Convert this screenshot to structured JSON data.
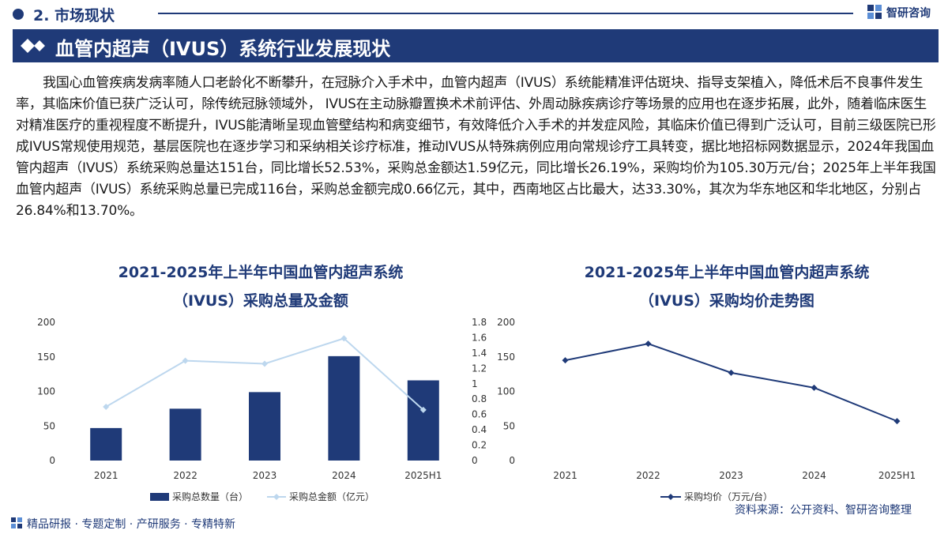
{
  "header": {
    "section": "2. 市场现状",
    "brand": "智研咨询",
    "title": "血管内超声（IVUS）系统行业发展现状"
  },
  "body": {
    "paragraph": "我国心血管疾病发病率随人口老龄化不断攀升，在冠脉介入手术中，血管内超声（IVUS）系统能精准评估斑块、指导支架植入，降低术后不良事件发生率，其临床价值已获广泛认可，除传统冠脉领域外， IVUS在主动脉瓣置换术术前评估、外周动脉疾病诊疗等场景的应用也在逐步拓展，此外，随着临床医生对精准医疗的重视程度不断提升，IVUS能清晰呈现血管壁结构和病变细节，有效降低介入手术的并发症风险，其临床价值已得到广泛认可，目前三级医院已形成IVUS常规使用规范，基层医院也在逐步学习和采纳相关诊疗标准，推动IVUS从特殊病例应用向常规诊疗工具转变，据比地招标网数据显示，2024年我国血管内超声（IVUS）系统采购总量达151台，同比增长52.53%，采购总金额达1.59亿元，同比增长26.19%，采购均价为105.30万元/台；2025年上半年我国血管内超声（IVUS）系统采购总量已完成116台，采购总金额完成0.66亿元，其中，西南地区占比最大，达33.30%，其次为华东地区和华北地区，分别占26.84%和13.70%。"
  },
  "chart_data": [
    {
      "type": "bar+line",
      "title_line1": "2021-2025年上半年中国血管内超声系统",
      "title_line2": "（IVUS）采购总量及金额",
      "categories": [
        "2021",
        "2022",
        "2023",
        "2024",
        "2025H1"
      ],
      "series": [
        {
          "name": "采购总数量（台）",
          "kind": "bar",
          "axis": "left",
          "color": "#1f3a78",
          "values": [
            47,
            75,
            99,
            151,
            116
          ]
        },
        {
          "name": "采购总金额（亿元）",
          "kind": "line",
          "axis": "right",
          "color": "#bdd7ee",
          "values": [
            0.7,
            1.3,
            1.26,
            1.59,
            0.66
          ]
        }
      ],
      "y_left": {
        "min": 0,
        "max": 200,
        "ticks": [
          "0",
          "50",
          "100",
          "150",
          "200"
        ]
      },
      "y_right": {
        "min": 0,
        "max": 1.8,
        "ticks": [
          "0",
          "0.2",
          "0.4",
          "0.6",
          "0.8",
          "1",
          "1.2",
          "1.4",
          "1.6",
          "1.8"
        ]
      }
    },
    {
      "type": "line",
      "title_line1": "2021-2025年上半年中国血管内超声系统",
      "title_line2": "（IVUS）采购均价走势图",
      "categories": [
        "2021",
        "2022",
        "2023",
        "2024",
        "2025H1"
      ],
      "series": [
        {
          "name": "采购均价（万元/台）",
          "color": "#1f3a78",
          "values": [
            145,
            169,
            127,
            105.3,
            57
          ]
        }
      ],
      "y": {
        "min": 0,
        "max": 200,
        "ticks": [
          "0",
          "50",
          "100",
          "150",
          "200"
        ]
      }
    }
  ],
  "footer": {
    "services": "精品研报 · 专题定制 · 产研服务 · 专精特新",
    "source": "资料来源：公开资料、智研咨询整理"
  }
}
